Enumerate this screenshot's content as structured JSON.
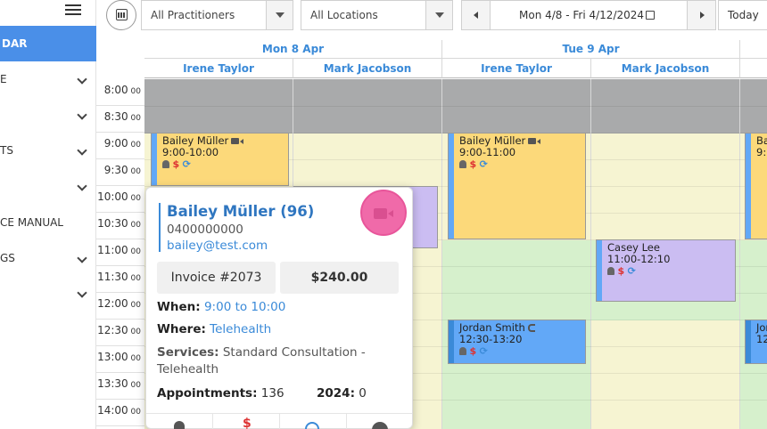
{
  "sidebar": {
    "active_label": "DAR",
    "items": [
      {
        "label": "E",
        "has_chevron": true
      },
      {
        "label": "",
        "has_chevron": true
      },
      {
        "label": "TS",
        "has_chevron": true
      },
      {
        "label": "",
        "has_chevron": true
      },
      {
        "label": "CE MANUAL",
        "has_chevron": false
      },
      {
        "label": "GS",
        "has_chevron": true
      },
      {
        "label": "",
        "has_chevron": true
      }
    ]
  },
  "toolbar": {
    "practitioners": "All Practitioners",
    "locations": "All Locations",
    "date_range": "Mon 4/8 - Fri 4/12/2024",
    "today_label": "Today"
  },
  "calendar": {
    "days": [
      {
        "label": "Mon 8 Apr",
        "practitioners": [
          "Irene Taylor",
          "Mark Jacobson"
        ]
      },
      {
        "label": "Tue 9 Apr",
        "practitioners": [
          "Irene Taylor",
          "Mark Jacobson"
        ]
      }
    ],
    "times": [
      {
        "hour": "8:00",
        "min": "00"
      },
      {
        "hour": "8:30",
        "min": "00"
      },
      {
        "hour": "9:00",
        "min": "00"
      },
      {
        "hour": "9:30",
        "min": "00"
      },
      {
        "hour": "10:00",
        "min": "00"
      },
      {
        "hour": "10:30",
        "min": "00"
      },
      {
        "hour": "11:00",
        "min": "00"
      },
      {
        "hour": "11:30",
        "min": "00"
      },
      {
        "hour": "12:00",
        "min": "00"
      },
      {
        "hour": "12:30",
        "min": "00"
      },
      {
        "hour": "13:00",
        "min": "00"
      },
      {
        "hour": "13:30",
        "min": "00"
      },
      {
        "hour": "14:00",
        "min": "00"
      }
    ],
    "appointments": {
      "a1": {
        "name": "Bailey Müller",
        "time": "9:00-10:00",
        "icons": "$"
      },
      "a2": {
        "name": "Bailey Müller",
        "time": "9:00-11:00",
        "icons": "$"
      },
      "a3": {
        "name": "Casey Lee",
        "time": "11:00-12:10",
        "icons": "$"
      },
      "a4": {
        "name": "Jordan Smith",
        "time": "12:30-13:20",
        "icons": "$"
      },
      "a5": {
        "name": "Bai",
        "time": "9:0"
      },
      "a6": {
        "name": "Jor",
        "time": "12:"
      }
    },
    "colors": {
      "unavailable": "#a9aaab",
      "available_yellow": "#f6f4d2",
      "available_green": "#d6f0cc",
      "appt_yellow": "#fcd97a",
      "appt_purple": "#cbbdf2",
      "appt_blue": "#62a8f7"
    }
  },
  "popup": {
    "patient": "Bailey Müller (96)",
    "phone": "0400000000",
    "email": "bailey@test.com",
    "invoice": "Invoice #2073",
    "amount": "$240.00",
    "when_label": "When:",
    "when_value": "9:00 to 10:00",
    "where_label": "Where:",
    "where_value": "Telehealth",
    "services_label": "Services:",
    "services_value": "Standard Consultation - Telehealth",
    "appointments_label": "Appointments:",
    "appointments_value": "136",
    "year_label": "2024:",
    "year_value": "0",
    "footer_icons": [
      "bell-icon",
      "dollar-icon",
      "repeat-icon",
      "status-icon"
    ]
  }
}
